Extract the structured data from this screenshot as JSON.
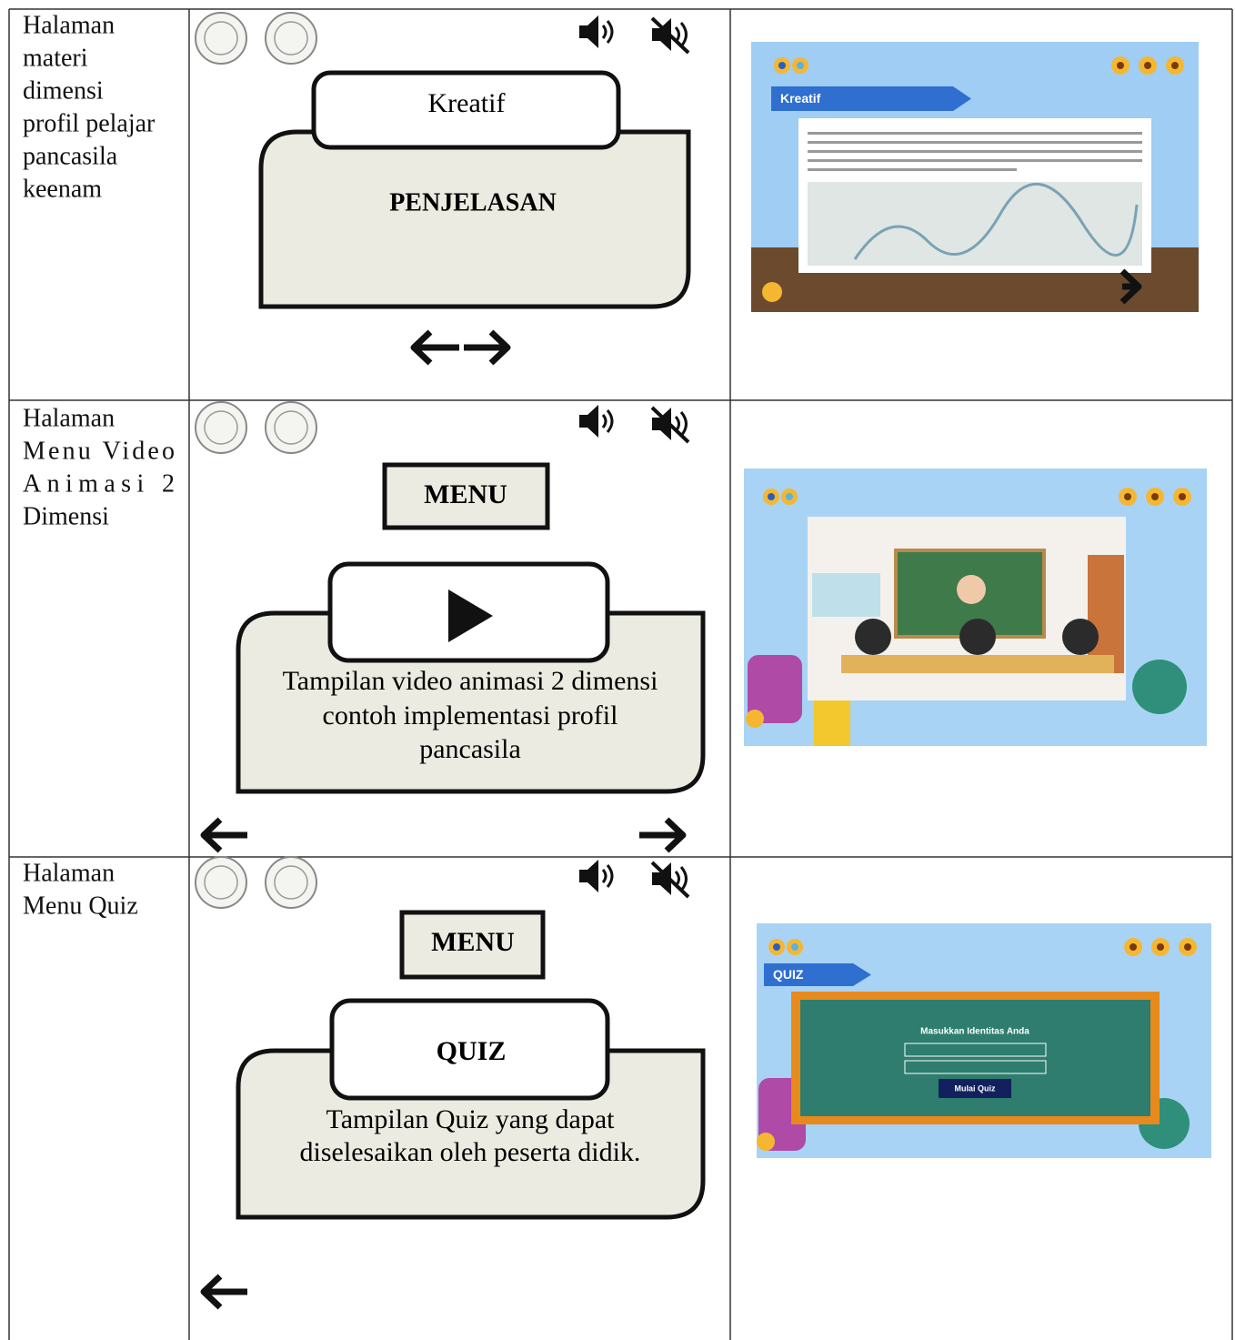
{
  "rows": [
    {
      "label": [
        "Halaman",
        "materi",
        "dimensi",
        "profil pelajar",
        "pancasila",
        "keenam"
      ],
      "storyboard": {
        "header": "Kreatif",
        "body": "PENJELASAN"
      },
      "screenshot": {
        "tab": "Kreatif"
      }
    },
    {
      "label": [
        "Halaman",
        "Menu  Video",
        "Animasi      2",
        "Dimensi"
      ],
      "storyboard": {
        "menu": "MENU",
        "caption": [
          "Tampilan video animasi 2 dimensi",
          "contoh implementasi profil",
          "pancasila"
        ]
      },
      "screenshot": {}
    },
    {
      "label": [
        "Halaman",
        "Menu Quiz"
      ],
      "storyboard": {
        "menu": "MENU",
        "header": "QUIZ",
        "caption": [
          "Tampilan Quiz yang dapat",
          "diselesaikan oleh peserta didik."
        ]
      },
      "screenshot": {
        "tab": "QUIZ",
        "form_title": "Masukkan Identitas Anda",
        "button": "Mulai Quiz"
      }
    }
  ]
}
